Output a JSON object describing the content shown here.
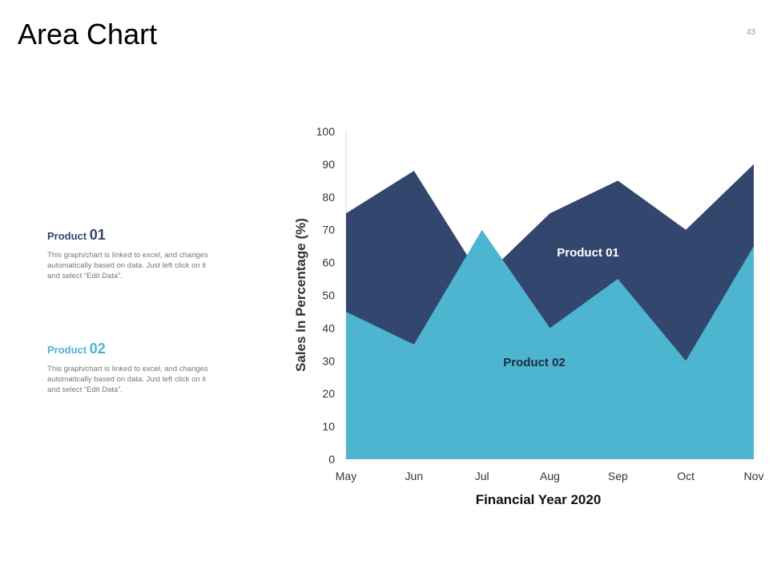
{
  "slide": {
    "title": "Area Chart",
    "page_number": "43"
  },
  "sidebar": {
    "items": [
      {
        "label": "Product",
        "number": "01",
        "description": "This graph/chart is linked to excel, and changes automatically based on data. Just left click on it and select “Edit Data”."
      },
      {
        "label": "Product",
        "number": "02",
        "description": "This graph/chart is linked to excel, and changes automatically based on data. Just left click on it and select “Edit Data”."
      }
    ]
  },
  "colors": {
    "product01": "#33466e",
    "product02": "#4db5cf",
    "axis_text": "#333333",
    "axis_line": "#d9d9d9"
  },
  "chart_data": {
    "type": "area",
    "title": "",
    "xlabel": "Financial Year 2020",
    "ylabel": "Sales In Percentage (%)",
    "categories": [
      "May",
      "Jun",
      "Jul",
      "Aug",
      "Sep",
      "Oct",
      "Nov"
    ],
    "ylim": [
      0,
      100
    ],
    "yticks": [
      0,
      10,
      20,
      30,
      40,
      50,
      60,
      70,
      80,
      90,
      100
    ],
    "series": [
      {
        "name": "Product 01",
        "values": [
          75,
          88,
          55,
          75,
          85,
          70,
          90
        ]
      },
      {
        "name": "Product 02",
        "values": [
          45,
          35,
          70,
          40,
          55,
          30,
          65
        ]
      }
    ],
    "annotations": [
      "Product 01",
      "Product 02"
    ]
  }
}
